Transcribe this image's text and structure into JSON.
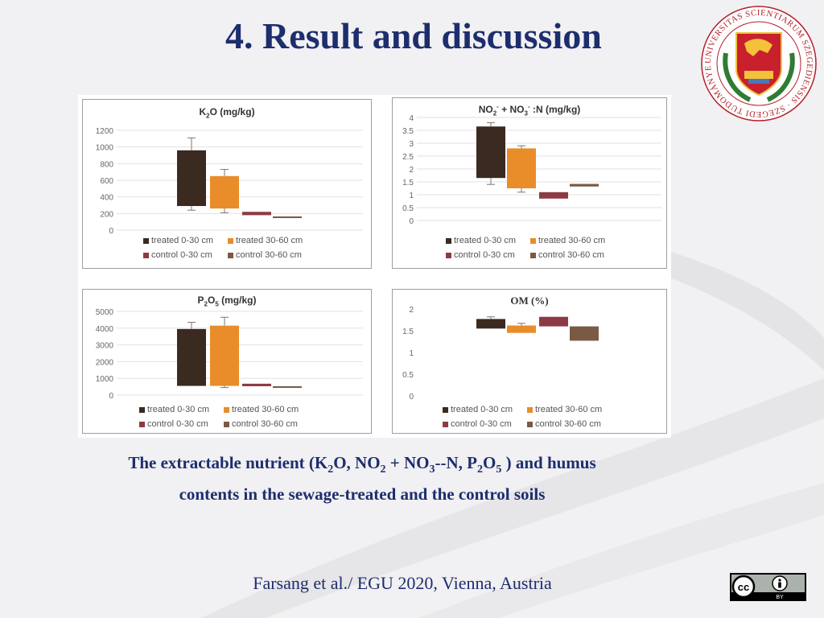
{
  "page": {
    "title": "4. Result and discussion",
    "caption": {
      "line1_parts": [
        "The extractable nutrient (K",
        "2",
        "O, NO",
        "2",
        " + NO",
        "3",
        "--N, P",
        "2",
        "O",
        "5",
        " ) and humus"
      ],
      "line2": "contents in the sewage-treated and the control soils"
    },
    "footer": "Farsang et al./ EGU 2020, Vienna, Austria",
    "logo": {
      "ring_text": "UNIVERSITAS SCIENTIARUM SZEGEDIENSIS · SZEGEDI TUDOMÁNYEGYETEM ·",
      "icon": "university-seal-icon"
    },
    "license_badge": {
      "icon": "cc-by-icon",
      "text": "BY"
    }
  },
  "colors": {
    "title": "#1d2e6e",
    "treated_0_30": "#3b2a1f",
    "treated_30_60": "#e88d2a",
    "control_0_30": "#8c3b44",
    "control_30_60": "#7a5a44"
  },
  "chart_data": [
    {
      "type": "bar",
      "title_parts": [
        "K",
        "2",
        "O (mg/kg)"
      ],
      "categories": [
        "treated 0-30 cm",
        "treated 30-60 cm",
        "control 0-30 cm",
        "control 30-60 cm"
      ],
      "boxes": [
        {
          "low": 290,
          "high": 960,
          "whisker_low": 240,
          "whisker_high": 1110
        },
        {
          "low": 260,
          "high": 650,
          "whisker_low": 210,
          "whisker_high": 730
        },
        {
          "low": 180,
          "high": 220,
          "whisker_low": 180,
          "whisker_high": 220
        },
        {
          "low": 145,
          "high": 165,
          "whisker_low": 145,
          "whisker_high": 165
        }
      ],
      "yticks": [
        "1200",
        "1000",
        "800",
        "600",
        "400",
        "200",
        "0"
      ],
      "ylim": [
        0,
        1200
      ],
      "grid": true,
      "legend": "bottom"
    },
    {
      "type": "bar",
      "title_parts": [
        "NO",
        "2",
        "-",
        " + NO",
        "3",
        "-",
        " :N (mg/kg)"
      ],
      "categories": [
        "treated 0-30 cm",
        "treated 30-60 cm",
        "control 0-30 cm",
        "control 30-60 cm"
      ],
      "boxes": [
        {
          "low": 1.65,
          "high": 3.65,
          "whisker_low": 1.4,
          "whisker_high": 3.8
        },
        {
          "low": 1.25,
          "high": 2.8,
          "whisker_low": 1.1,
          "whisker_high": 2.9
        },
        {
          "low": 0.85,
          "high": 1.1,
          "whisker_low": 0.85,
          "whisker_high": 1.1
        },
        {
          "low": 1.32,
          "high": 1.42,
          "whisker_low": 1.32,
          "whisker_high": 1.42
        }
      ],
      "yticks": [
        "4",
        "3.5",
        "3",
        "2.5",
        "2",
        "1.5",
        "1",
        "0.5",
        "0"
      ],
      "ylim": [
        0,
        4
      ],
      "grid": true,
      "legend": "bottom"
    },
    {
      "type": "bar",
      "title_parts": [
        "P",
        "2",
        "O",
        "5",
        " (mg/kg)"
      ],
      "categories": [
        "treated 0-30 cm",
        "treated 30-60 cm",
        "control 0-30 cm",
        "control 30-60 cm"
      ],
      "boxes": [
        {
          "low": 550,
          "high": 3950,
          "whisker_low": 550,
          "whisker_high": 4350
        },
        {
          "low": 550,
          "high": 4150,
          "whisker_low": 450,
          "whisker_high": 4650
        },
        {
          "low": 530,
          "high": 680,
          "whisker_low": 530,
          "whisker_high": 680
        },
        {
          "low": 430,
          "high": 530,
          "whisker_low": 430,
          "whisker_high": 530
        }
      ],
      "yticks": [
        "5000",
        "4000",
        "3000",
        "2000",
        "1000",
        "0"
      ],
      "ylim": [
        0,
        5000
      ],
      "grid": true,
      "legend": "bottom"
    },
    {
      "type": "bar",
      "title": "OM (%)",
      "categories": [
        "treated 0-30 cm",
        "treated 30-60 cm",
        "control 0-30 cm",
        "control 30-60 cm"
      ],
      "boxes": [
        {
          "low": 1.55,
          "high": 1.77,
          "whisker_low": 1.55,
          "whisker_high": 1.82
        },
        {
          "low": 1.45,
          "high": 1.62,
          "whisker_low": 1.45,
          "whisker_high": 1.67
        },
        {
          "low": 1.6,
          "high": 1.82,
          "whisker_low": 1.6,
          "whisker_high": 1.82
        },
        {
          "low": 1.27,
          "high": 1.6,
          "whisker_low": 1.27,
          "whisker_high": 1.6
        }
      ],
      "yticks": [
        "2",
        "1.5",
        "1",
        "0.5",
        "0"
      ],
      "ylim": [
        0,
        2
      ],
      "grid": false,
      "legend": "bottom"
    }
  ]
}
